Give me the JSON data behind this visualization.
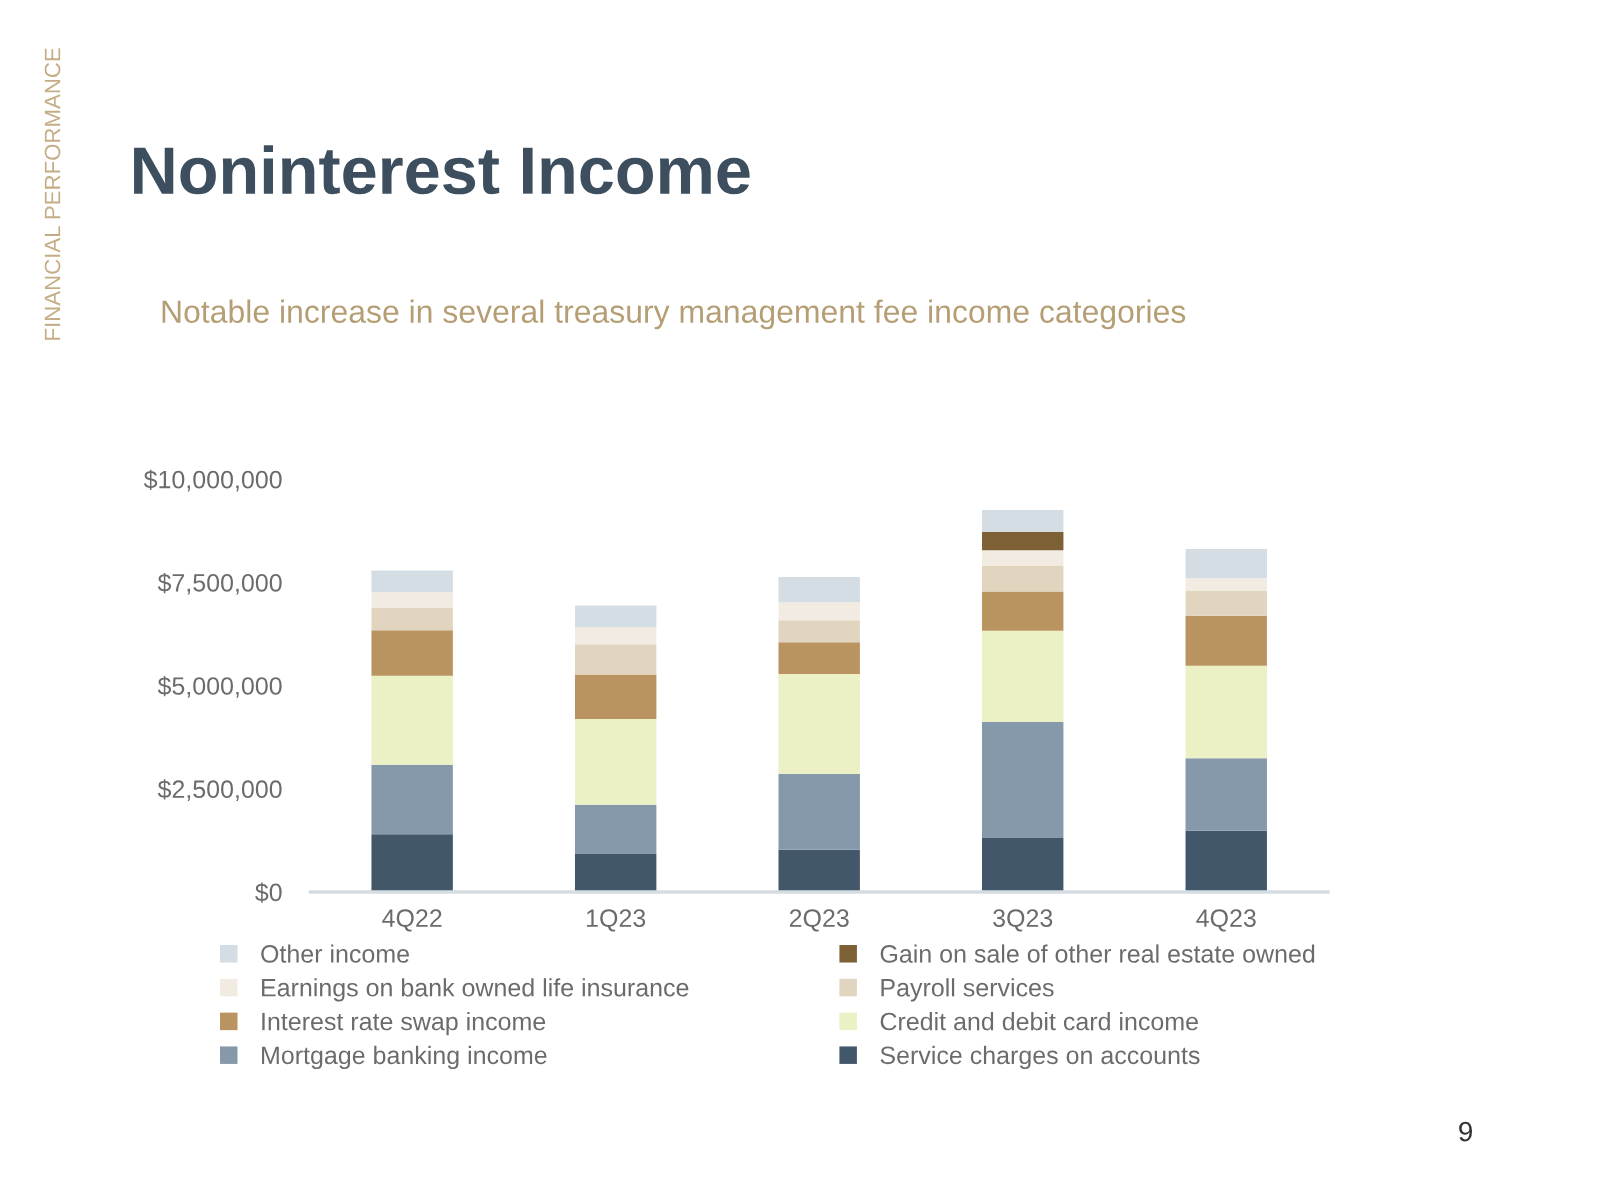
{
  "chart_data": {
    "type": "bar",
    "title": "Noninterest Income",
    "subtitle": "Notable increase in several treasury management fee income categories",
    "annotations": [
      "FINANCIAL PERFORMANCE",
      "9"
    ],
    "categories": [
      "4Q22",
      "1Q23",
      "2Q23",
      "3Q23",
      "4Q23"
    ],
    "stacked": true,
    "series": [
      {
        "name": "Service charges on accounts",
        "color": "#43576a",
        "values": [
          1400000,
          920000,
          1020000,
          1310000,
          1480000
        ]
      },
      {
        "name": "Mortgage banking income",
        "color": "#8599ab",
        "values": [
          1680000,
          1190000,
          1840000,
          2810000,
          1760000
        ]
      },
      {
        "name": "Credit and debit card income",
        "color": "#ebf0c5",
        "values": [
          2160000,
          2080000,
          2420000,
          2210000,
          2240000
        ]
      },
      {
        "name": "Interest rate swap income",
        "color": "#b99460",
        "values": [
          1100000,
          1080000,
          770000,
          950000,
          1210000
        ]
      },
      {
        "name": "Payroll services",
        "color": "#e2d5c0",
        "values": [
          550000,
          730000,
          530000,
          630000,
          600000
        ]
      },
      {
        "name": "Earnings on bank owned life insurance",
        "color": "#f1ebe1",
        "values": [
          370000,
          420000,
          440000,
          370000,
          310000
        ]
      },
      {
        "name": "Gain on sale of other real estate owned",
        "color": "#7e6036",
        "values": [
          null,
          null,
          null,
          440000,
          null
        ]
      },
      {
        "name": "Other income",
        "color": "#d3dde3",
        "values": [
          530000,
          520000,
          610000,
          530000,
          710000
        ]
      }
    ],
    "ylim": [
      0,
      10000000
    ],
    "yticks": [
      {
        "value": 0,
        "label": "$0"
      },
      {
        "value": 2500000,
        "label": "$2,500,000"
      },
      {
        "value": 5000000,
        "label": "$5,000,000"
      },
      {
        "value": 7500000,
        "label": "$7,500,000"
      },
      {
        "value": 10000000,
        "label": "$10,000,000"
      }
    ],
    "grid": false,
    "legend": "bottom"
  }
}
